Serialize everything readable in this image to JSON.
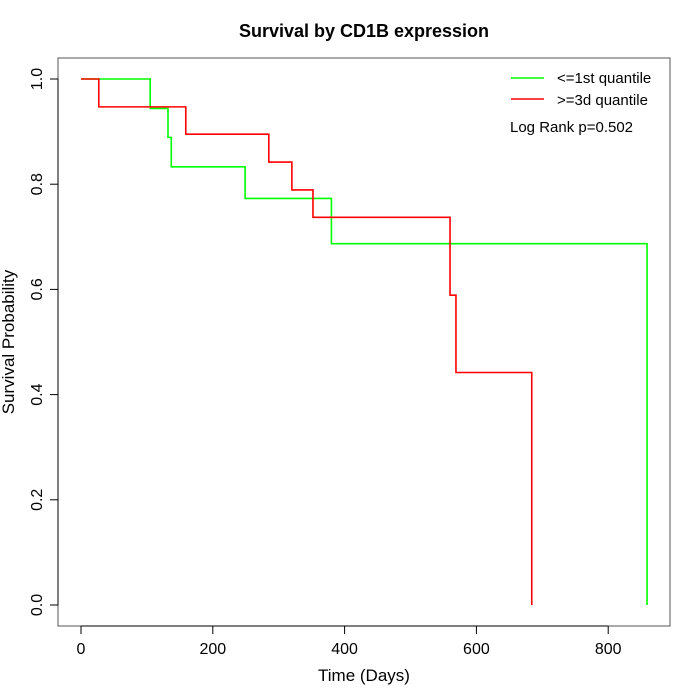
{
  "chart_data": {
    "type": "line",
    "subtype": "kaplan-meier-step",
    "title": "Survival by CD1B expression",
    "xlabel": "Time (Days)",
    "ylabel": "Survival Probability",
    "xlim": [
      0,
      860
    ],
    "ylim": [
      0,
      1
    ],
    "xticks": [
      0,
      200,
      400,
      600,
      800
    ],
    "yticks": [
      0.0,
      0.2,
      0.4,
      0.6,
      0.8,
      1.0
    ],
    "xtick_labels": [
      "0",
      "200",
      "400",
      "600",
      "800"
    ],
    "ytick_labels": [
      "0.0",
      "0.2",
      "0.4",
      "0.6",
      "0.8",
      "1.0"
    ],
    "grid": false,
    "legend_position": "top-right",
    "annotation": "Log Rank p=0.502",
    "series": [
      {
        "name": "<=1st quantile",
        "color": "#00ff00",
        "steps": [
          {
            "x": 0,
            "y": 1.0
          },
          {
            "x": 105,
            "y": 0.944
          },
          {
            "x": 132,
            "y": 0.889
          },
          {
            "x": 137,
            "y": 0.833
          },
          {
            "x": 249,
            "y": 0.773
          },
          {
            "x": 380,
            "y": 0.687
          },
          {
            "x": 859,
            "y": 0.0
          }
        ]
      },
      {
        "name": ">=3d quantile",
        "color": "#ff0000",
        "steps": [
          {
            "x": 0,
            "y": 1.0
          },
          {
            "x": 27,
            "y": 0.947
          },
          {
            "x": 159,
            "y": 0.895
          },
          {
            "x": 285,
            "y": 0.842
          },
          {
            "x": 320,
            "y": 0.789
          },
          {
            "x": 352,
            "y": 0.737
          },
          {
            "x": 560,
            "y": 0.589
          },
          {
            "x": 569,
            "y": 0.442
          },
          {
            "x": 684,
            "y": 0.0
          }
        ]
      }
    ]
  }
}
